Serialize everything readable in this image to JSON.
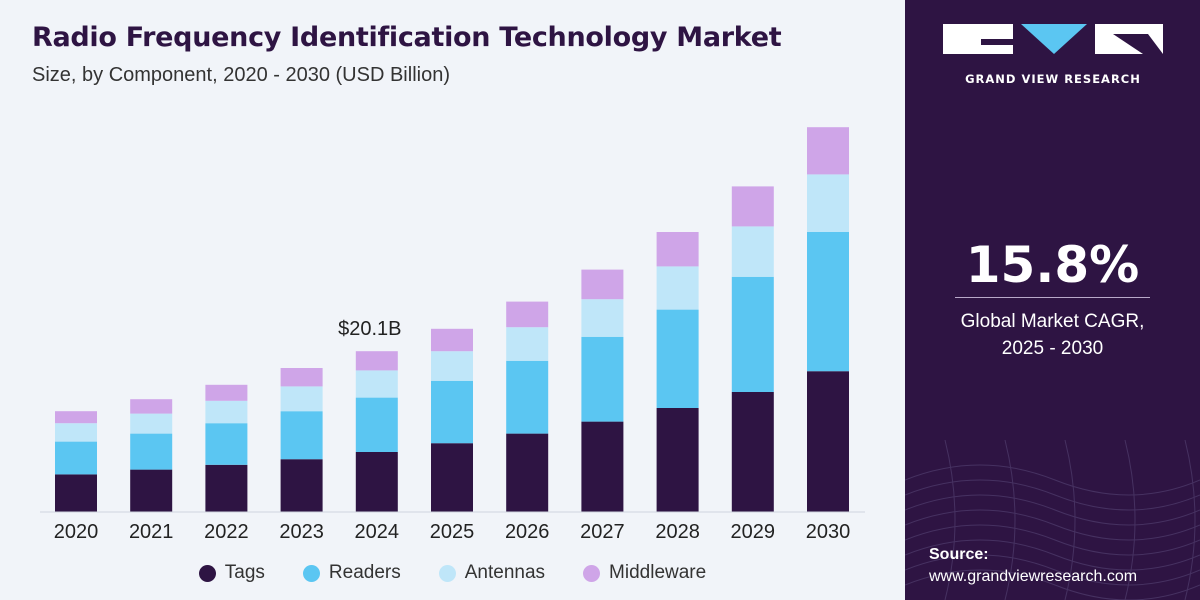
{
  "chart_data": {
    "type": "bar",
    "stacked": true,
    "title": "Radio Frequency Identification Technology Market",
    "subtitle": "Size, by Component, 2020 - 2030 (USD Billion)",
    "categories": [
      "2020",
      "2021",
      "2022",
      "2023",
      "2024",
      "2025",
      "2026",
      "2027",
      "2028",
      "2029",
      "2030"
    ],
    "series": [
      {
        "name": "Tags",
        "color": "#2e1443",
        "values": [
          4.7,
          5.3,
          5.9,
          6.6,
          7.5,
          8.6,
          9.8,
          11.3,
          13.0,
          15.0,
          17.6
        ]
      },
      {
        "name": "Readers",
        "color": "#5bc6f2",
        "values": [
          4.1,
          4.5,
          5.2,
          6.0,
          6.8,
          7.8,
          9.1,
          10.6,
          12.3,
          14.4,
          17.4
        ]
      },
      {
        "name": "Antennas",
        "color": "#bfe6f9",
        "values": [
          2.3,
          2.5,
          2.8,
          3.1,
          3.4,
          3.7,
          4.2,
          4.7,
          5.4,
          6.3,
          7.2
        ]
      },
      {
        "name": "Middleware",
        "color": "#cfa5e8",
        "values": [
          1.5,
          1.8,
          2.0,
          2.3,
          2.4,
          2.8,
          3.2,
          3.7,
          4.3,
          5.0,
          5.9
        ]
      }
    ],
    "annotations": [
      {
        "category": "2024",
        "label": "$20.1B"
      }
    ],
    "ylim": [
      0,
      50
    ],
    "grid": false,
    "legend_position": "bottom"
  },
  "brand": {
    "name": "GRAND VIEW RESEARCH"
  },
  "cagr": {
    "value": "15.8%",
    "label_line1": "Global Market CAGR,",
    "label_line2": "2025 - 2030"
  },
  "source": {
    "title": "Source:",
    "url": "www.grandviewresearch.com"
  },
  "colors": {
    "panel": "#2e1443",
    "background": "#f1f4f9"
  }
}
